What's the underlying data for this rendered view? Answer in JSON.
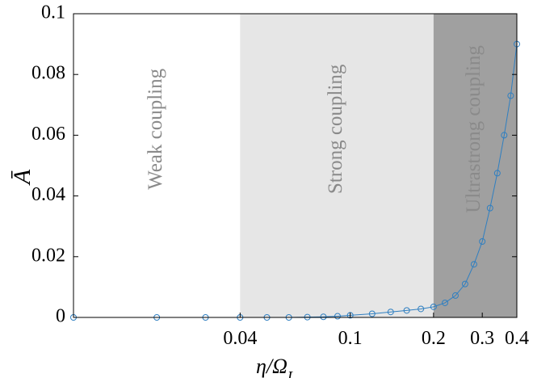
{
  "chart_data": {
    "type": "line",
    "xlabel": "η/Ω_L",
    "ylabel": "Ā",
    "xscale": "log",
    "xlim": [
      0.01,
      0.4
    ],
    "ylim": [
      0,
      0.1
    ],
    "xticks": [
      0.04,
      0.1,
      0.2,
      0.3,
      0.4
    ],
    "xtick_labels": [
      "0.04",
      "0.1",
      "0.2",
      "0.3",
      "0.4"
    ],
    "yticks": [
      0,
      0.02,
      0.04,
      0.06,
      0.08,
      0.1
    ],
    "ytick_labels": [
      "0",
      "0.02",
      "0.04",
      "0.06",
      "0.08",
      "0.1"
    ],
    "grid": false,
    "regions": [
      {
        "label": "Weak coupling",
        "from": 0.01,
        "to": 0.04,
        "color": "#ffffff"
      },
      {
        "label": "Strong coupling",
        "from": 0.04,
        "to": 0.2,
        "color": "#e6e6e6"
      },
      {
        "label": "Ultrastrong coupling",
        "from": 0.2,
        "to": 0.4,
        "color": "#a0a0a0"
      }
    ],
    "series": [
      {
        "color": "#2f7fc1",
        "marker": "circle",
        "x": [
          0.01,
          0.02,
          0.03,
          0.04,
          0.05,
          0.06,
          0.07,
          0.08,
          0.09,
          0.1,
          0.12,
          0.14,
          0.16,
          0.18,
          0.2,
          0.22,
          0.24,
          0.26,
          0.28,
          0.3,
          0.32,
          0.34,
          0.36,
          0.38,
          0.4
        ],
        "y": [
          0.0,
          0.0,
          0.0,
          0.0,
          0.0,
          0.0,
          0.0001,
          0.0002,
          0.0004,
          0.0007,
          0.0012,
          0.0018,
          0.0023,
          0.0028,
          0.0035,
          0.0048,
          0.0072,
          0.011,
          0.0175,
          0.025,
          0.036,
          0.0475,
          0.06,
          0.073,
          0.09
        ]
      }
    ]
  }
}
